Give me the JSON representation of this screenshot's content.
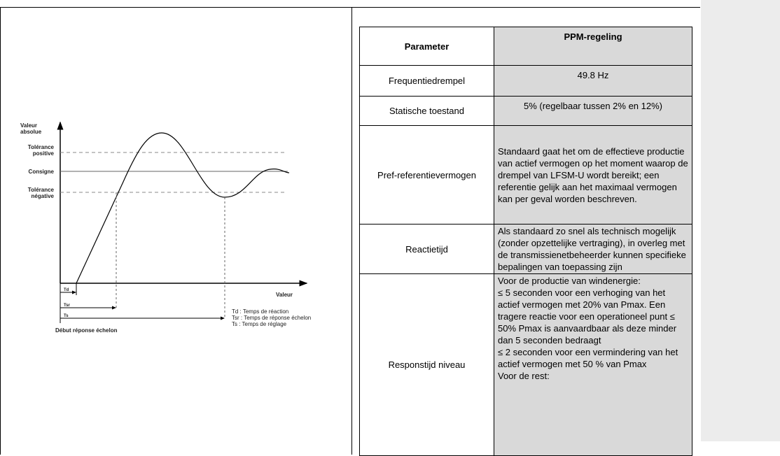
{
  "diagram": {
    "y_axis_label": [
      "Valeur",
      "absolue"
    ],
    "x_axis_label": "Valeur",
    "levels": [
      [
        "Tolérance",
        "positive"
      ],
      [
        "Consigne"
      ],
      [
        "Tolérance",
        "négative"
      ]
    ],
    "interval_labels": [
      "Td",
      "Tsr",
      "Ts"
    ],
    "legend": [
      "Td : Temps de réaction",
      "Tsr : Temps de réponse échelon",
      "Ts  : Temps de réglage"
    ],
    "start_label": "Début réponse échelon"
  },
  "table": {
    "header": [
      "Parameter",
      "PPM-regeling"
    ],
    "rows": [
      [
        "Frequentiedrempel",
        [
          "49.8 Hz"
        ]
      ],
      [
        "Statische toestand",
        [
          "5% (regelbaar tussen 2% en 12%)"
        ]
      ],
      [
        "Pref-referentievermogen",
        [
          "Standaard gaat het om de effectieve productie van actief vermogen op het moment waarop de drempel van LFSM-U wordt bereikt; een referentie gelijk aan het maximaal vermogen kan per geval worden beschreven."
        ]
      ],
      [
        "Reactietijd",
        [
          "Als standaard zo snel als technisch mogelijk (zonder opzettelijke vertraging), in overleg met de transmissienetbeheerder kunnen specifieke bepalingen van toepassing zijn"
        ]
      ],
      [
        "Responstijd niveau",
        [
          "Voor de productie van windenergie:",
          "≤ 5 seconden voor een verhoging van het actief vermogen met 20% van Pmax. Een tragere reactie voor een operationeel punt ≤ 50% Pmax is aanvaardbaar als deze minder dan 5 seconden bedraagt",
          "≤ 2 seconden voor een vermindering van het actief vermogen met 50 % van Pmax",
          "Voor de rest:"
        ]
      ]
    ]
  }
}
